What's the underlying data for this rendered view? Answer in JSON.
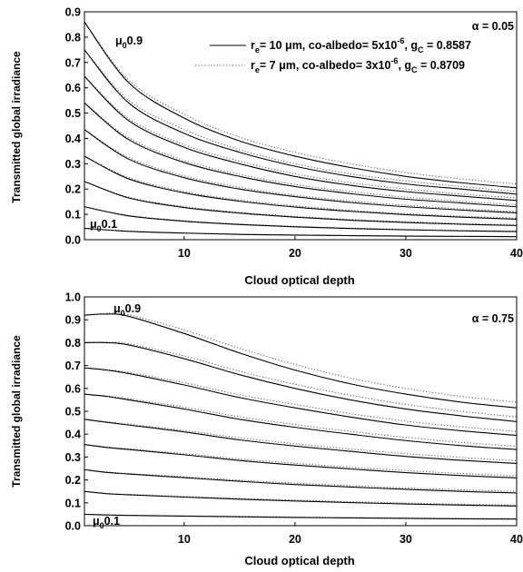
{
  "colors": {
    "solid": "#000000",
    "dotted": "#555555",
    "background": "#ffffff"
  },
  "chart_data": [
    {
      "type": "line",
      "panel": "top",
      "xlabel": "Cloud optical depth",
      "ylabel": "Transmitted global irradiance",
      "xlim": [
        1,
        40
      ],
      "ylim": [
        0,
        0.9
      ],
      "xticks": [
        "10",
        "20",
        "30",
        "40"
      ],
      "yticks": [
        "0.0",
        "0.1",
        "0.2",
        "0.3",
        "0.4",
        "0.5",
        "0.6",
        "0.7",
        "0.8",
        "0.9"
      ],
      "grid": false,
      "alpha_label": "α = 0.05",
      "mu_top_label": "0.9",
      "mu_bottom_label": "0.1",
      "legend": {
        "placement": "top-right",
        "solid": {
          "prefix": "r",
          "prefix_sub": "e",
          "text": "= 10 μm, co-albedo= 5x10",
          "exp": "-6",
          "tail": ", g",
          "tail_sub": "C",
          "end": " = 0.8587"
        },
        "dotted": {
          "prefix": "r",
          "prefix_sub": "e",
          "text": "= 7 μm, co-albedo= 3x10",
          "exp": "-6",
          "tail": ", g",
          "tail_sub": "C",
          "end": " = 0.8709"
        }
      },
      "x": [
        1,
        5,
        10,
        15,
        20,
        25,
        30,
        35,
        40
      ],
      "series": [
        {
          "mu0": 0.9,
          "solid": [
            0.86,
            0.62,
            0.48,
            0.39,
            0.33,
            0.285,
            0.25,
            0.225,
            0.205
          ],
          "dotted": [
            0.86,
            0.63,
            0.495,
            0.405,
            0.345,
            0.3,
            0.265,
            0.24,
            0.22
          ]
        },
        {
          "mu0": 0.8,
          "solid": [
            0.75,
            0.54,
            0.42,
            0.345,
            0.29,
            0.25,
            0.22,
            0.2,
            0.18
          ],
          "dotted": [
            0.75,
            0.55,
            0.435,
            0.355,
            0.3,
            0.26,
            0.232,
            0.21,
            0.19
          ]
        },
        {
          "mu0": 0.7,
          "solid": [
            0.645,
            0.47,
            0.365,
            0.3,
            0.25,
            0.215,
            0.19,
            0.172,
            0.155
          ],
          "dotted": [
            0.645,
            0.478,
            0.375,
            0.31,
            0.26,
            0.225,
            0.2,
            0.18,
            0.165
          ]
        },
        {
          "mu0": 0.6,
          "solid": [
            0.54,
            0.395,
            0.305,
            0.25,
            0.21,
            0.182,
            0.16,
            0.145,
            0.13
          ],
          "dotted": [
            0.54,
            0.402,
            0.313,
            0.258,
            0.218,
            0.19,
            0.168,
            0.152,
            0.138
          ]
        },
        {
          "mu0": 0.5,
          "solid": [
            0.435,
            0.318,
            0.245,
            0.2,
            0.17,
            0.147,
            0.13,
            0.117,
            0.106
          ],
          "dotted": [
            0.435,
            0.324,
            0.252,
            0.207,
            0.176,
            0.153,
            0.136,
            0.122,
            0.111
          ]
        },
        {
          "mu0": 0.4,
          "solid": [
            0.33,
            0.24,
            0.185,
            0.152,
            0.129,
            0.112,
            0.099,
            0.089,
            0.081
          ],
          "dotted": [
            0.33,
            0.245,
            0.19,
            0.157,
            0.134,
            0.116,
            0.103,
            0.093,
            0.085
          ]
        },
        {
          "mu0": 0.3,
          "solid": [
            0.23,
            0.165,
            0.127,
            0.105,
            0.089,
            0.077,
            0.068,
            0.061,
            0.056
          ],
          "dotted": [
            0.23,
            0.168,
            0.131,
            0.108,
            0.092,
            0.08,
            0.071,
            0.064,
            0.059
          ]
        },
        {
          "mu0": 0.2,
          "solid": [
            0.13,
            0.094,
            0.073,
            0.06,
            0.051,
            0.044,
            0.039,
            0.035,
            0.032
          ],
          "dotted": [
            0.13,
            0.096,
            0.075,
            0.062,
            0.053,
            0.046,
            0.041,
            0.037,
            0.034
          ]
        },
        {
          "mu0": 0.1,
          "solid": [
            0.045,
            0.033,
            0.026,
            0.021,
            0.018,
            0.016,
            0.014,
            0.013,
            0.012
          ],
          "dotted": [
            0.045,
            0.034,
            0.027,
            0.022,
            0.019,
            0.017,
            0.015,
            0.014,
            0.013
          ]
        }
      ]
    },
    {
      "type": "line",
      "panel": "bottom",
      "xlabel": "Cloud optical depth",
      "ylabel": "Transmitted global irradiance",
      "xlim": [
        1,
        40
      ],
      "ylim": [
        0,
        1.0
      ],
      "xticks": [
        "10",
        "20",
        "30",
        "40"
      ],
      "yticks": [
        "0.0",
        "0.1",
        "0.2",
        "0.3",
        "0.4",
        "0.5",
        "0.6",
        "0.7",
        "0.8",
        "0.9",
        "1.0"
      ],
      "grid": false,
      "alpha_label": "α = 0.75",
      "mu_top_label": "0.9",
      "mu_bottom_label": "0.1",
      "x": [
        1,
        3,
        5,
        10,
        15,
        20,
        25,
        30,
        35,
        40
      ],
      "series": [
        {
          "mu0": 0.9,
          "solid": [
            0.92,
            0.925,
            0.915,
            0.84,
            0.755,
            0.68,
            0.62,
            0.575,
            0.54,
            0.515
          ],
          "dotted": [
            0.92,
            0.928,
            0.922,
            0.855,
            0.775,
            0.705,
            0.645,
            0.6,
            0.565,
            0.54
          ]
        },
        {
          "mu0": 0.8,
          "solid": [
            0.8,
            0.8,
            0.79,
            0.73,
            0.66,
            0.6,
            0.55,
            0.51,
            0.48,
            0.455
          ],
          "dotted": [
            0.8,
            0.802,
            0.795,
            0.742,
            0.675,
            0.618,
            0.57,
            0.53,
            0.5,
            0.475
          ]
        },
        {
          "mu0": 0.7,
          "solid": [
            0.69,
            0.68,
            0.665,
            0.615,
            0.56,
            0.515,
            0.475,
            0.44,
            0.415,
            0.395
          ],
          "dotted": [
            0.69,
            0.682,
            0.67,
            0.625,
            0.572,
            0.53,
            0.49,
            0.457,
            0.432,
            0.412
          ]
        },
        {
          "mu0": 0.6,
          "solid": [
            0.575,
            0.565,
            0.55,
            0.51,
            0.465,
            0.43,
            0.4,
            0.372,
            0.35,
            0.333
          ],
          "dotted": [
            0.575,
            0.567,
            0.555,
            0.518,
            0.476,
            0.442,
            0.412,
            0.386,
            0.364,
            0.347
          ]
        },
        {
          "mu0": 0.5,
          "solid": [
            0.465,
            0.452,
            0.44,
            0.41,
            0.375,
            0.348,
            0.325,
            0.303,
            0.286,
            0.272
          ],
          "dotted": [
            0.465,
            0.454,
            0.444,
            0.416,
            0.384,
            0.358,
            0.335,
            0.315,
            0.298,
            0.284
          ]
        },
        {
          "mu0": 0.4,
          "solid": [
            0.355,
            0.342,
            0.333,
            0.31,
            0.285,
            0.265,
            0.248,
            0.232,
            0.219,
            0.209
          ],
          "dotted": [
            0.355,
            0.344,
            0.336,
            0.315,
            0.292,
            0.273,
            0.256,
            0.241,
            0.228,
            0.218
          ]
        },
        {
          "mu0": 0.3,
          "solid": [
            0.245,
            0.233,
            0.226,
            0.21,
            0.194,
            0.18,
            0.169,
            0.159,
            0.15,
            0.143
          ],
          "dotted": [
            0.245,
            0.235,
            0.228,
            0.214,
            0.199,
            0.186,
            0.175,
            0.165,
            0.157,
            0.15
          ]
        },
        {
          "mu0": 0.2,
          "solid": [
            0.15,
            0.14,
            0.135,
            0.125,
            0.116,
            0.108,
            0.101,
            0.095,
            0.09,
            0.086
          ],
          "dotted": [
            0.15,
            0.141,
            0.137,
            0.128,
            0.119,
            0.112,
            0.105,
            0.099,
            0.094,
            0.09
          ]
        },
        {
          "mu0": 0.1,
          "solid": [
            0.05,
            0.047,
            0.045,
            0.042,
            0.039,
            0.036,
            0.034,
            0.032,
            0.03,
            0.029
          ],
          "dotted": [
            0.05,
            0.048,
            0.046,
            0.043,
            0.041,
            0.038,
            0.036,
            0.034,
            0.032,
            0.031
          ]
        }
      ]
    }
  ]
}
